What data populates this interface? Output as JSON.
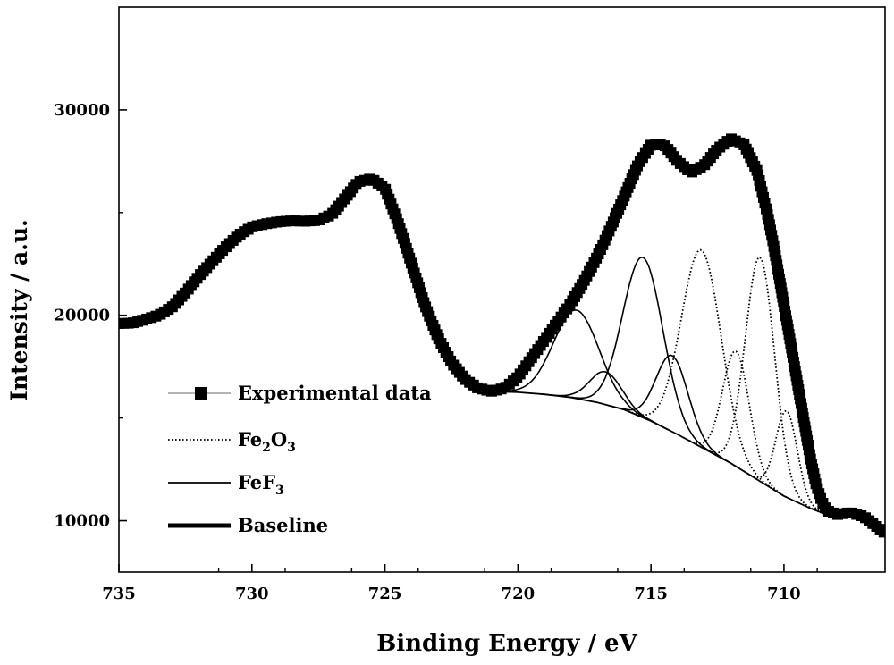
{
  "chart_data": {
    "type": "line",
    "title": "",
    "xlabel": "Binding Energy / eV",
    "ylabel": "Intensity / a.u.",
    "x_reversed": true,
    "xlim": [
      735,
      706.2
    ],
    "ylim": [
      7500,
      35000
    ],
    "x_ticks": [
      735,
      730,
      725,
      720,
      715,
      710
    ],
    "y_ticks": [
      10000,
      20000,
      30000
    ],
    "grid": false,
    "legend_position": "lower-left",
    "legend": [
      {
        "name_main": "Experimental data",
        "sub1": "",
        "mid": "",
        "sub2": "",
        "style": "square-marker"
      },
      {
        "name_main": "Fe",
        "sub1": "2",
        "mid": "O",
        "sub2": "3",
        "style": "dotted"
      },
      {
        "name_main": "Fe",
        "sub1": "",
        "mid": "F",
        "sub2": "3",
        "style": "solid"
      },
      {
        "name_main": "Baseline",
        "sub1": "",
        "mid": "",
        "sub2": "",
        "style": "thick"
      }
    ],
    "experimental": {
      "x": [
        735,
        734.5,
        734,
        733.5,
        733,
        732.5,
        732,
        731.5,
        731,
        730.5,
        730,
        729.5,
        729,
        728.5,
        728,
        727.5,
        727,
        726.5,
        726,
        725.5,
        725,
        724.5,
        724,
        723.5,
        723,
        722.5,
        722,
        721.5,
        721,
        720.5,
        720,
        719.5,
        719,
        718.5,
        718,
        717.5,
        717,
        716.5,
        716,
        715.5,
        715,
        714.5,
        714,
        713.5,
        713,
        712.5,
        712,
        711.5,
        711,
        710.8,
        710.6,
        710.4,
        710.2,
        710,
        709.8,
        709.6,
        709.4,
        709.2,
        709,
        708.8,
        708.6,
        708.4,
        708,
        707.5,
        707,
        706.5,
        706.2
      ],
      "y": [
        19600,
        19620,
        19800,
        20000,
        20400,
        21100,
        21900,
        22600,
        23300,
        23900,
        24300,
        24450,
        24550,
        24600,
        24580,
        24620,
        24900,
        25700,
        26500,
        26650,
        26200,
        24500,
        22500,
        20500,
        18900,
        17700,
        16900,
        16450,
        16300,
        16450,
        17000,
        17900,
        18800,
        19700,
        20600,
        21700,
        22900,
        24300,
        25800,
        27300,
        28300,
        28300,
        27500,
        26950,
        27300,
        28100,
        28600,
        28300,
        27000,
        25900,
        24800,
        23500,
        22000,
        20500,
        19000,
        17500,
        16000,
        14500,
        13000,
        11800,
        11000,
        10500,
        10300,
        10400,
        10200,
        9700,
        9400
      ]
    },
    "baseline": {
      "x": [
        721,
        720,
        719,
        718,
        717,
        716,
        715,
        714,
        713,
        712,
        711,
        710,
        709,
        708.5
      ],
      "y": [
        16300,
        16250,
        16150,
        16000,
        15750,
        15400,
        14850,
        14200,
        13500,
        12800,
        12000,
        11200,
        10600,
        10350
      ]
    },
    "peaks": [
      {
        "group": "FeF3",
        "style": "solid",
        "center": 717.8,
        "height": 4300,
        "sigma": 0.85
      },
      {
        "group": "FeF3",
        "style": "solid",
        "center": 716.7,
        "height": 1600,
        "sigma": 0.6
      },
      {
        "group": "FeF3",
        "style": "solid",
        "center": 715.3,
        "height": 7800,
        "sigma": 0.75
      },
      {
        "group": "FeF3",
        "style": "solid",
        "center": 714.2,
        "height": 3700,
        "sigma": 0.6
      },
      {
        "group": "Fe2O3",
        "style": "dotted",
        "center": 713.1,
        "height": 9600,
        "sigma": 0.75
      },
      {
        "group": "Fe2O3",
        "style": "dotted",
        "center": 711.8,
        "height": 5600,
        "sigma": 0.5
      },
      {
        "group": "Fe2O3",
        "style": "dotted",
        "center": 710.9,
        "height": 10900,
        "sigma": 0.55
      },
      {
        "group": "Fe2O3",
        "style": "dotted",
        "center": 709.9,
        "height": 4200,
        "sigma": 0.4
      }
    ]
  }
}
